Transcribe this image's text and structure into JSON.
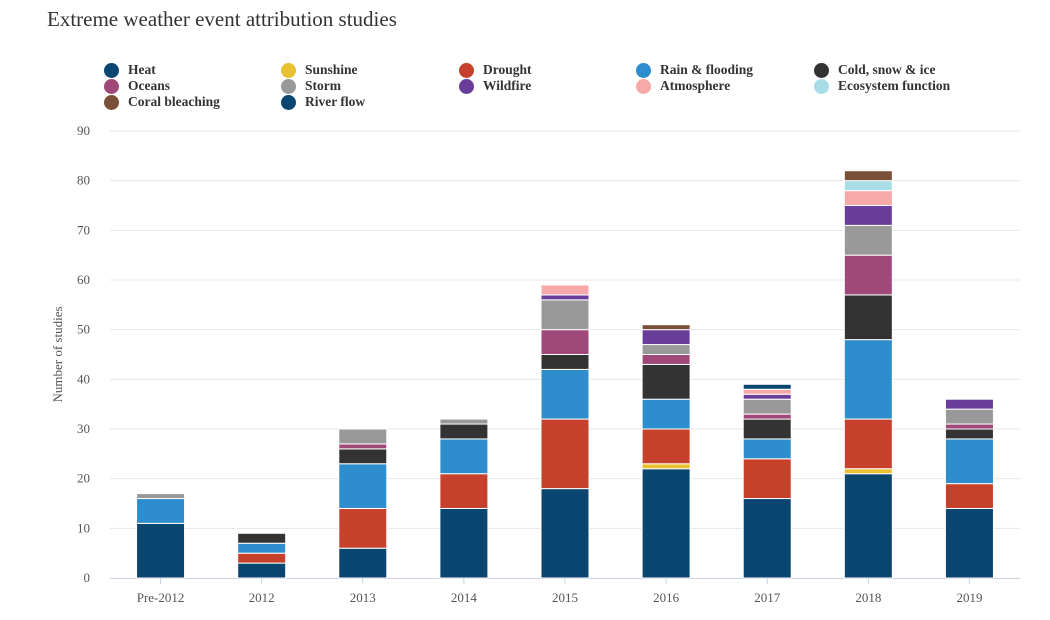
{
  "chart_data": {
    "type": "bar",
    "stacked": true,
    "title": "Extreme weather event attribution studies",
    "ylabel": "Number of studies",
    "xlabel": "",
    "ylim": [
      0,
      90
    ],
    "yticks": [
      0,
      10,
      20,
      30,
      40,
      50,
      60,
      70,
      80,
      90
    ],
    "grid": true,
    "legend_position": "top",
    "categories": [
      "Pre-2012",
      "2012",
      "2013",
      "2014",
      "2015",
      "2016",
      "2017",
      "2018",
      "2019"
    ],
    "series": [
      {
        "name": "Heat",
        "color": "#0b4670",
        "values": [
          11,
          3,
          6,
          14,
          18,
          22,
          16,
          21,
          14
        ]
      },
      {
        "name": "Sunshine",
        "color": "#e8c030",
        "values": [
          0,
          0,
          0,
          0,
          0,
          1,
          0,
          1,
          0
        ]
      },
      {
        "name": "Drought",
        "color": "#c5412b",
        "values": [
          0,
          2,
          8,
          7,
          14,
          7,
          8,
          10,
          5
        ]
      },
      {
        "name": "Rain & flooding",
        "color": "#2e8dcc",
        "values": [
          5,
          2,
          9,
          7,
          10,
          6,
          4,
          16,
          9
        ]
      },
      {
        "name": "Cold, snow & ice",
        "color": "#333333",
        "values": [
          0,
          2,
          3,
          3,
          3,
          7,
          4,
          9,
          2
        ]
      },
      {
        "name": "Oceans",
        "color": "#a0487a",
        "values": [
          0,
          0,
          1,
          0,
          5,
          2,
          1,
          8,
          1
        ]
      },
      {
        "name": "Storm",
        "color": "#999999",
        "values": [
          1,
          0,
          3,
          1,
          6,
          2,
          3,
          6,
          3
        ]
      },
      {
        "name": "Wildfire",
        "color": "#6a3d9a",
        "values": [
          0,
          0,
          0,
          0,
          1,
          3,
          1,
          4,
          2
        ]
      },
      {
        "name": "Atmosphere",
        "color": "#f7a8a8",
        "values": [
          0,
          0,
          0,
          0,
          2,
          0,
          1,
          3,
          0
        ]
      },
      {
        "name": "Ecosystem function",
        "color": "#a8dde6",
        "values": [
          0,
          0,
          0,
          0,
          0,
          0,
          0,
          2,
          0
        ]
      },
      {
        "name": "Coral bleaching",
        "color": "#7a5038",
        "values": [
          0,
          0,
          0,
          0,
          0,
          1,
          0,
          2,
          0
        ]
      },
      {
        "name": "River flow",
        "color": "#0b4670",
        "values": [
          0,
          0,
          0,
          0,
          0,
          0,
          1,
          0,
          0
        ]
      }
    ]
  }
}
